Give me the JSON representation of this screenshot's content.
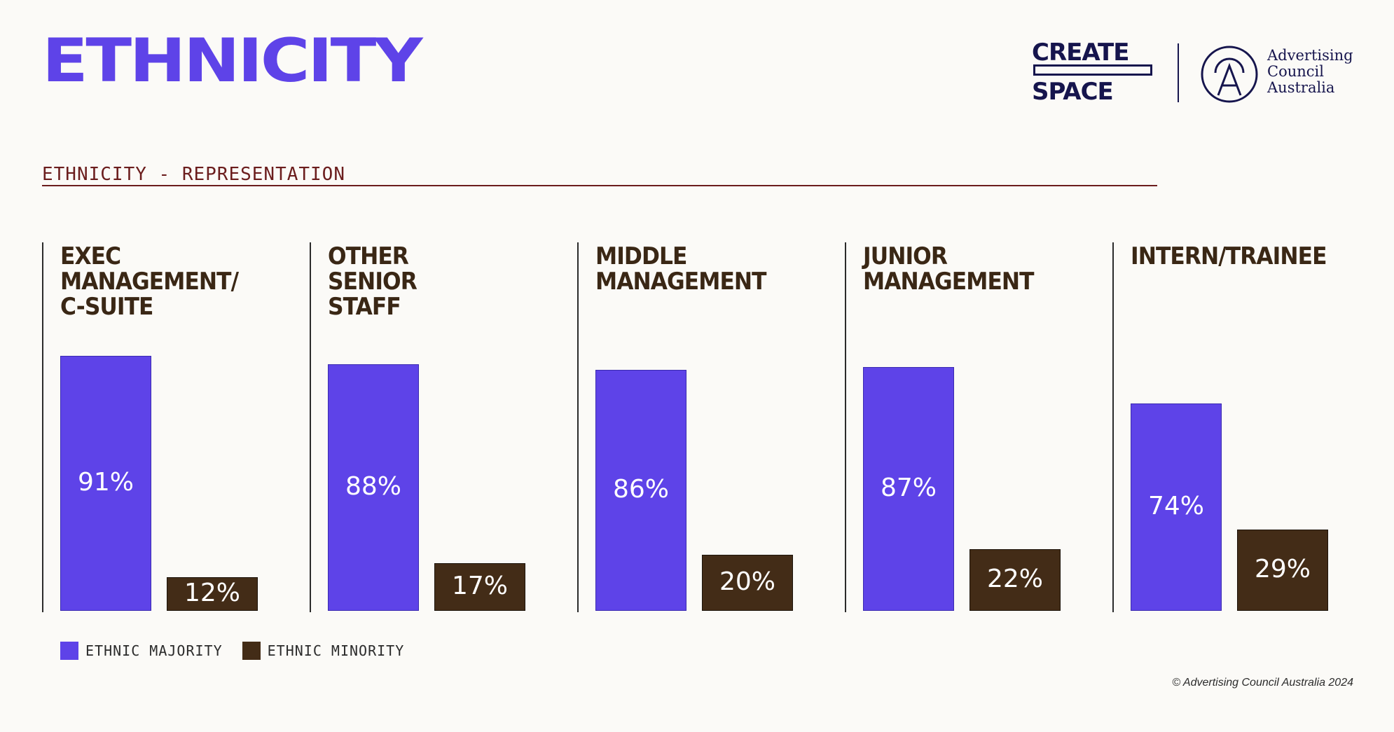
{
  "page": {
    "title": "ETHNICITY",
    "footer": "© Advertising Council Australia 2024"
  },
  "brand": {
    "create_top": "CREATE",
    "create_bottom": "SPACE",
    "council_line1": "Advertising",
    "council_line2": "Council",
    "council_line3": "Australia",
    "color": "#16154d"
  },
  "chart_data": {
    "type": "bar",
    "title": "ETHNICITY - REPRESENTATION",
    "categories": [
      "EXEC MANAGEMENT/\nC-SUITE",
      "OTHER\nSENIOR\nSTAFF",
      "MIDDLE\nMANAGEMENT",
      "JUNIOR\nMANAGEMENT",
      "INTERN/TRAINEE"
    ],
    "series": [
      {
        "name": "ETHNIC MAJORITY",
        "values": [
          91,
          88,
          86,
          87,
          74
        ],
        "color": "#5e43e8"
      },
      {
        "name": "ETHNIC MINORITY",
        "values": [
          12,
          17,
          20,
          22,
          29
        ],
        "color": "#432c17"
      }
    ],
    "value_suffix": "%",
    "ylim": [
      0,
      100
    ],
    "grid": false,
    "legend": "bottom-left"
  }
}
